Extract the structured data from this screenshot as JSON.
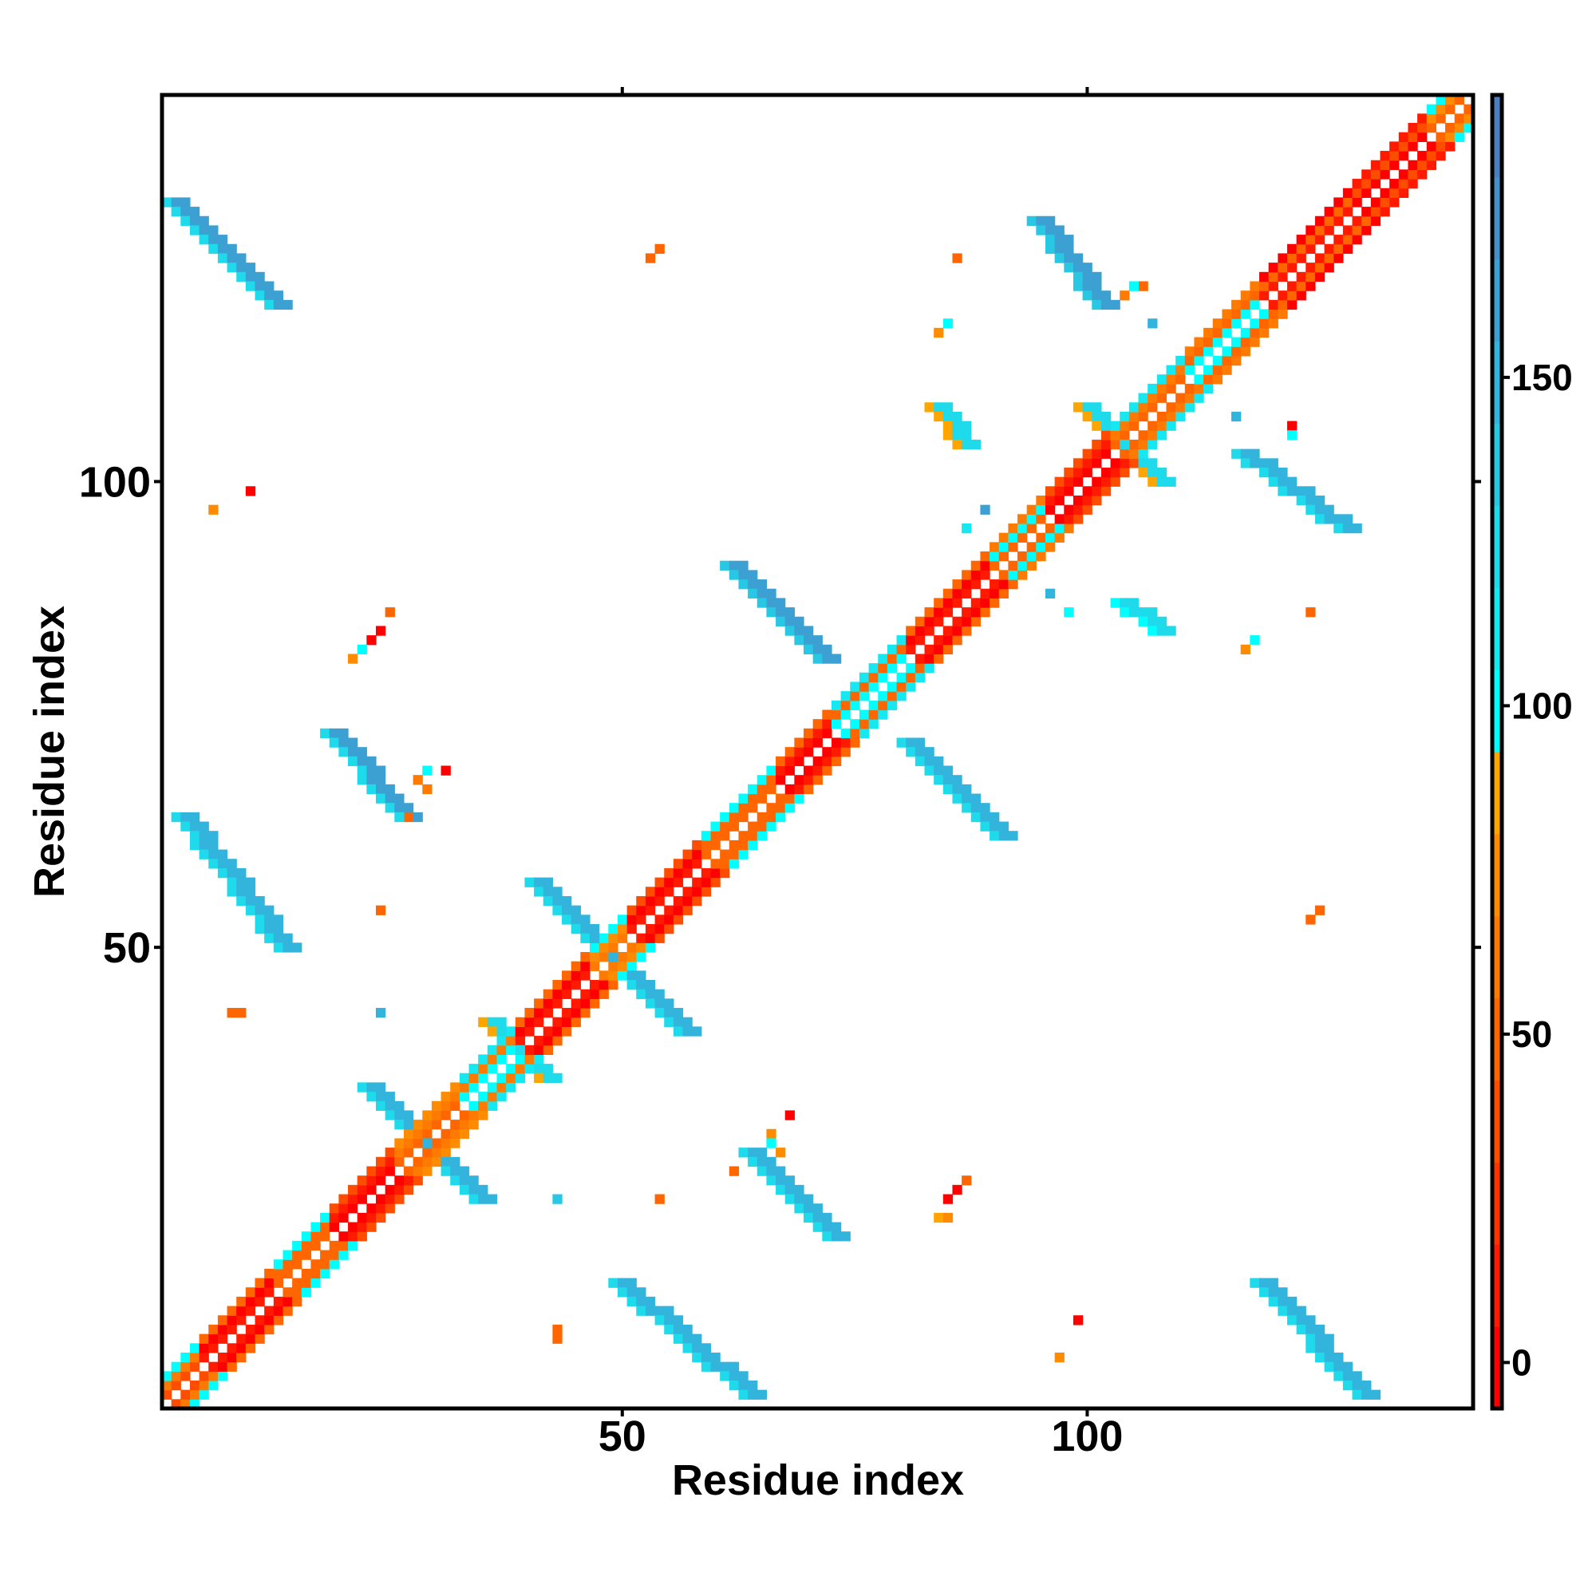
{
  "chart_data": {
    "type": "heatmap",
    "title": "",
    "xlabel": "Residue index",
    "ylabel": "Residue index",
    "x_range": [
      1,
      141
    ],
    "y_range": [
      1,
      141
    ],
    "x_ticks": [
      "50",
      "100"
    ],
    "x_tick_values": [
      50,
      100
    ],
    "y_ticks": [
      "50",
      "100"
    ],
    "y_tick_values": [
      50,
      100
    ],
    "colorbar": {
      "range": [
        -7,
        193
      ],
      "ticks": [
        "0",
        "50",
        "100",
        "150"
      ],
      "tick_values": [
        0,
        50,
        100,
        150
      ],
      "bin_width": 12.5,
      "colors": [
        "#ff0000",
        "#ff1a00",
        "#ff3300",
        "#ff4d00",
        "#ff6600",
        "#ff7a00",
        "#ff8c00",
        "#ffa500",
        "#00ffff",
        "#16e8f2",
        "#1fdaea",
        "#28c8e4",
        "#32b4dc",
        "#3da0d2",
        "#4690c8",
        "#4a80c0",
        "#ffffff"
      ]
    },
    "diagonal_segments_note": "[start,end,value_offset1,value_offset2,value_offset3]",
    "diagonal_segments": [
      [
        1,
        4,
        40,
        60,
        95
      ],
      [
        5,
        12,
        10,
        5,
        45
      ],
      [
        13,
        18,
        45,
        55,
        100
      ],
      [
        19,
        25,
        5,
        10,
        40
      ],
      [
        26,
        32,
        55,
        60,
        70
      ],
      [
        33,
        38,
        100,
        60,
        110
      ],
      [
        39,
        46,
        10,
        5,
        45
      ],
      [
        47,
        50,
        60,
        70,
        100
      ],
      [
        51,
        58,
        10,
        5,
        40
      ],
      [
        59,
        66,
        45,
        55,
        100
      ],
      [
        67,
        72,
        5,
        10,
        45
      ],
      [
        73,
        80,
        100,
        55,
        110
      ],
      [
        81,
        89,
        10,
        5,
        45
      ],
      [
        90,
        95,
        55,
        100,
        60
      ],
      [
        96,
        102,
        5,
        10,
        40
      ],
      [
        103,
        110,
        55,
        60,
        110
      ],
      [
        111,
        118,
        100,
        55,
        60
      ],
      [
        119,
        128,
        10,
        45,
        5
      ],
      [
        129,
        136,
        5,
        40,
        10
      ],
      [
        137,
        141,
        55,
        70,
        100
      ]
    ],
    "streaks_note": "[x_start,y_start,x_end,y_end,width,value]",
    "streaks": [
      [
        2,
        130,
        13,
        119,
        3,
        160
      ],
      [
        3,
        64,
        14,
        50,
        3,
        150
      ],
      [
        19,
        73,
        27,
        64,
        3,
        158
      ],
      [
        23,
        35,
        35,
        23,
        3,
        150
      ],
      [
        36,
        42,
        42,
        36,
        3,
        118
      ],
      [
        41,
        57,
        57,
        41,
        3,
        155
      ],
      [
        100,
        108,
        108,
        100,
        3,
        118
      ],
      [
        50,
        14,
        64,
        2,
        3,
        150
      ],
      [
        64,
        28,
        73,
        19,
        3,
        152
      ],
      [
        62,
        91,
        72,
        81,
        3,
        162
      ],
      [
        81,
        72,
        91,
        62,
        3,
        155
      ],
      [
        95,
        128,
        102,
        119,
        3,
        162
      ],
      [
        117,
        103,
        128,
        95,
        3,
        150
      ],
      [
        119,
        14,
        130,
        2,
        3,
        155
      ],
      [
        84,
        108,
        87,
        104,
        3,
        122
      ],
      [
        104,
        87,
        108,
        84,
        3,
        126
      ]
    ],
    "points_note": "[x,y,value]",
    "points": [
      [
        10,
        99,
        3
      ],
      [
        6,
        97,
        75
      ],
      [
        54,
        125,
        45
      ],
      [
        53,
        124,
        45
      ],
      [
        23,
        83,
        5
      ],
      [
        24,
        84,
        5
      ],
      [
        25,
        86,
        45
      ],
      [
        22,
        82,
        95
      ],
      [
        21,
        81,
        75
      ],
      [
        24,
        54,
        55
      ],
      [
        8,
        43,
        45
      ],
      [
        9,
        43,
        45
      ],
      [
        24,
        43,
        145
      ],
      [
        43,
        8,
        50
      ],
      [
        43,
        9,
        50
      ],
      [
        54,
        23,
        50
      ],
      [
        43,
        23,
        140
      ],
      [
        68,
        32,
        5
      ],
      [
        66,
        30,
        75
      ],
      [
        66,
        29,
        95
      ],
      [
        67,
        28,
        70
      ],
      [
        62,
        26,
        50
      ],
      [
        85,
        23,
        5
      ],
      [
        86,
        24,
        5
      ],
      [
        87,
        25,
        45
      ],
      [
        84,
        21,
        90
      ],
      [
        85,
        21,
        70
      ],
      [
        99,
        10,
        5
      ],
      [
        97,
        6,
        75
      ],
      [
        124,
        53,
        45
      ],
      [
        125,
        54,
        45
      ],
      [
        124,
        86,
        45
      ],
      [
        118,
        83,
        95
      ],
      [
        117,
        82,
        75
      ],
      [
        96,
        88,
        155
      ],
      [
        98,
        86,
        100
      ],
      [
        87,
        95,
        110
      ],
      [
        89,
        97,
        160
      ],
      [
        85,
        117,
        95
      ],
      [
        84,
        116,
        75
      ],
      [
        86,
        124,
        45
      ],
      [
        107,
        117,
        150
      ],
      [
        116,
        107,
        150
      ],
      [
        122,
        106,
        5
      ],
      [
        122,
        105,
        100
      ],
      [
        106,
        121,
        45
      ],
      [
        105,
        121,
        100
      ],
      [
        104,
        120,
        60
      ],
      [
        31,
        69,
        5
      ],
      [
        29,
        69,
        95
      ],
      [
        28,
        68,
        60
      ],
      [
        29,
        67,
        60
      ],
      [
        27,
        64,
        55
      ]
    ]
  }
}
